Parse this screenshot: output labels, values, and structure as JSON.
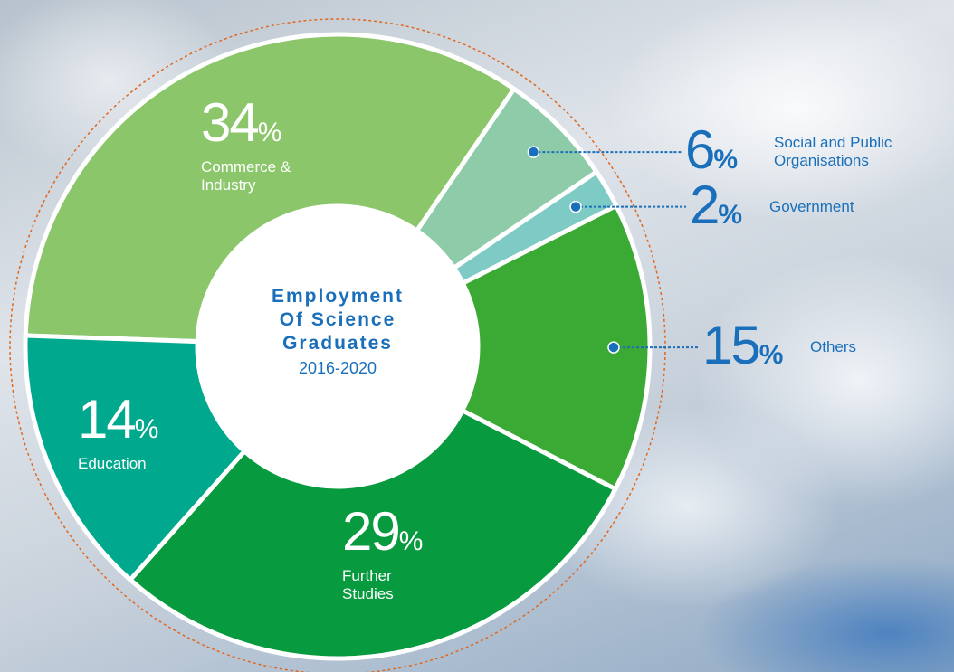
{
  "chart_data": {
    "type": "donut",
    "title": "Employment Of Science Graduates",
    "subtitle": "2016-2020",
    "unit": "%",
    "categories": [
      "Commerce & Industry",
      "Social and Public Organisations",
      "Government",
      "Others",
      "Further Studies",
      "Education"
    ],
    "values": [
      34,
      6,
      2,
      15,
      29,
      14
    ],
    "colors": [
      "#8cc66a",
      "#8ecba8",
      "#7ecbc6",
      "#3aaa35",
      "#079a3e",
      "#00a88e"
    ]
  }
}
